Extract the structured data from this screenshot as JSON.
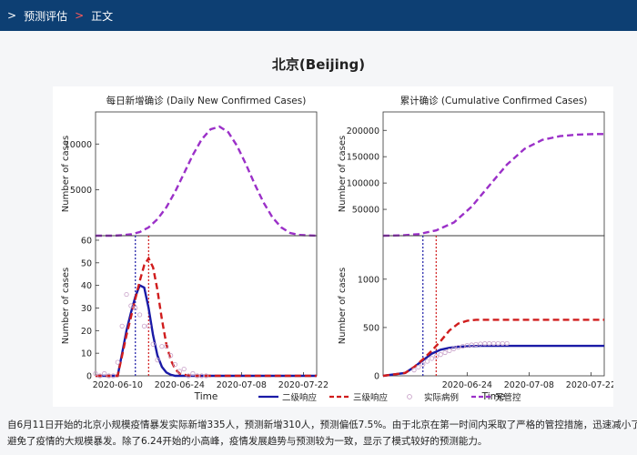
{
  "nav": {
    "sep1": ">",
    "item1": "预测评估",
    "sep2": ">",
    "item2": "正文"
  },
  "page": {
    "title": "北京(Beijing)"
  },
  "caption": {
    "line1": "自6月11日开始的北京小规模疫情暴发实际新增335人，预测新增310人，预测偏低7.5%。由于北京在第一时间内采取了严格的管控措施，迅速减小了",
    "line2": "避免了疫情的大规模暴发。除了6.24开始的小高峰，疫情发展趋势与预测较为一致，显示了模式较好的预测能力。"
  },
  "colors": {
    "nav_bg": "#0d3f73",
    "level2": "#1a1aa6",
    "level3": "#d01c1c",
    "actual": "#c8a0c8",
    "no_control": "#9b30c8"
  },
  "chart_data": [
    {
      "id": "daily-top",
      "type": "line",
      "title": "每日新增确诊 (Daily New Confirmed Cases)",
      "ylabel": "Number of cases",
      "xlabel": "",
      "x_tick_labels": [],
      "yticks": [
        5000,
        10000
      ],
      "ylim": [
        0,
        13500
      ],
      "grid": false,
      "series": [
        {
          "name": "无管控",
          "style": "dashed",
          "x": [
            0,
            4,
            6,
            8,
            10,
            12,
            14,
            16,
            18,
            20,
            22,
            24,
            26,
            28,
            30,
            32,
            34,
            36,
            38,
            40,
            42,
            44,
            46,
            50
          ],
          "y": [
            0,
            0,
            50,
            150,
            400,
            900,
            1800,
            3100,
            4800,
            6800,
            8800,
            10500,
            11600,
            11900,
            11300,
            9800,
            7800,
            5600,
            3600,
            2000,
            900,
            300,
            80,
            0
          ]
        }
      ]
    },
    {
      "id": "daily-bottom",
      "type": "line",
      "title": "",
      "ylabel": "Number of cases",
      "xlabel": "Time",
      "x_tick_labels": [
        "2020-06-10",
        "2020-06-24",
        "2020-07-08",
        "2020-07-22"
      ],
      "x_tick_values": [
        5,
        19,
        33,
        47
      ],
      "yticks": [
        0,
        10,
        20,
        30,
        40,
        50,
        60
      ],
      "ylim": [
        0,
        62
      ],
      "vlines": [
        {
          "x": 9,
          "series": "二级响应"
        },
        {
          "x": 12,
          "series": "三级响应"
        }
      ],
      "series": [
        {
          "name": "二级响应",
          "style": "solid",
          "x": [
            0,
            5,
            6,
            7,
            8,
            9,
            10,
            11,
            12,
            13,
            14,
            15,
            16,
            17,
            18,
            20,
            22,
            50
          ],
          "y": [
            0,
            0,
            10,
            20,
            28,
            35,
            40,
            39,
            30,
            18,
            9,
            4,
            1.5,
            0.5,
            0,
            0,
            0,
            0
          ]
        },
        {
          "name": "三级响应",
          "style": "dashed",
          "x": [
            0,
            5,
            6,
            7,
            8,
            9,
            10,
            11,
            12,
            13,
            14,
            15,
            16,
            17,
            18,
            19,
            20,
            22,
            50
          ],
          "y": [
            0,
            0,
            9,
            18,
            26,
            34,
            42,
            49,
            52,
            48,
            38,
            25,
            14,
            7,
            3,
            1,
            0.5,
            0,
            0
          ]
        },
        {
          "name": "实际病例",
          "style": "markers",
          "x": [
            0,
            1,
            2,
            3,
            4,
            5,
            6,
            7,
            8,
            9,
            10,
            11,
            12,
            13,
            14,
            15,
            16,
            17,
            18,
            19,
            20,
            21,
            22,
            23,
            24,
            25
          ],
          "y": [
            1,
            0,
            1,
            0,
            0,
            6,
            22,
            36,
            31,
            30,
            27,
            22,
            22,
            14,
            7,
            13,
            13,
            9,
            5,
            2,
            3,
            0,
            1,
            0,
            0,
            0
          ]
        }
      ]
    },
    {
      "id": "cumulative-top",
      "type": "line",
      "title": "累计确诊 (Cumulative Confirmed Cases)",
      "ylabel": "Number of cases",
      "xlabel": "",
      "x_tick_labels": [],
      "yticks": [
        50000,
        100000,
        150000,
        200000
      ],
      "ylim": [
        0,
        235000
      ],
      "series": [
        {
          "name": "无管控",
          "style": "dashed",
          "x": [
            0,
            4,
            8,
            12,
            16,
            20,
            24,
            28,
            32,
            36,
            40,
            44,
            48,
            50
          ],
          "y": [
            0,
            500,
            3000,
            10000,
            25000,
            55000,
            95000,
            135000,
            165000,
            182000,
            189000,
            192000,
            193000,
            193000
          ]
        }
      ]
    },
    {
      "id": "cumulative-bottom",
      "type": "line",
      "title": "",
      "ylabel": "Number of cases",
      "xlabel": "Time",
      "x_tick_labels": [
        "2020-06-24",
        "2020-07-08",
        "2020-07-22"
      ],
      "x_tick_values": [
        19,
        33,
        47
      ],
      "yticks": [
        0,
        500,
        1000
      ],
      "ylim": [
        0,
        1450
      ],
      "vlines": [
        {
          "x": 9,
          "series": "二级响应"
        },
        {
          "x": 12,
          "series": "三级响应"
        }
      ],
      "series": [
        {
          "name": "二级响应",
          "style": "solid",
          "x": [
            0,
            5,
            7,
            9,
            11,
            13,
            15,
            17,
            19,
            22,
            50
          ],
          "y": [
            0,
            30,
            90,
            160,
            230,
            270,
            290,
            300,
            305,
            310,
            310
          ]
        },
        {
          "name": "三级响应",
          "style": "dashed",
          "x": [
            0,
            5,
            7,
            9,
            11,
            13,
            15,
            17,
            19,
            21,
            50
          ],
          "y": [
            0,
            30,
            90,
            170,
            260,
            360,
            470,
            540,
            570,
            580,
            580
          ]
        },
        {
          "name": "实际病例",
          "style": "markers",
          "x": [
            7,
            8,
            9,
            10,
            11,
            12,
            13,
            14,
            15,
            16,
            17,
            18,
            19,
            20,
            21,
            22,
            23,
            24,
            25,
            26,
            27,
            28
          ],
          "y": [
            60,
            90,
            120,
            150,
            180,
            200,
            220,
            240,
            260,
            280,
            295,
            305,
            315,
            320,
            325,
            330,
            333,
            334,
            335,
            335,
            335,
            335
          ]
        }
      ]
    }
  ],
  "legend": {
    "items": [
      {
        "label": "二级响应",
        "style": "solid"
      },
      {
        "label": "三级响应",
        "style": "dashed"
      },
      {
        "label": "实际病例",
        "style": "markers"
      },
      {
        "label": "无管控",
        "style": "dashed-purple"
      }
    ]
  }
}
